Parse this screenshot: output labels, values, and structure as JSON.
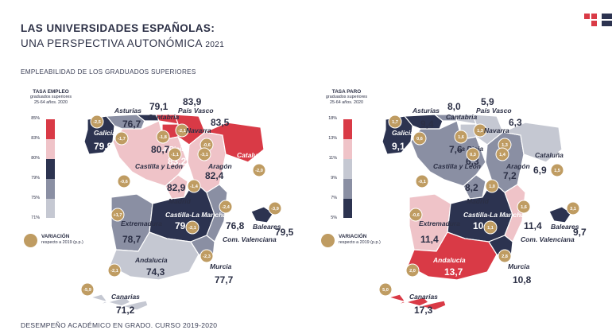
{
  "header": {
    "title_line1": "LAS UNIVERSIDADES ESPAÑOLAS:",
    "title_line2": "UNA PERSPECTIVA AUTONÓMICA",
    "year": "2021"
  },
  "section_title": "EMPLEABILIDAD DE LOS GRADUADOS SUPERIORES",
  "footer": "DESEMPEÑO ACADÉMICO EN GRADO. CURSO 2019-2020",
  "colors": {
    "dark": "#2c3350",
    "mid": "#8a8fa3",
    "light": "#c5c8d2",
    "pink": "#efc3c8",
    "red": "#d93a46",
    "gold": "#bf9c62"
  },
  "maps": [
    {
      "legend_title": "TASA EMPLEO",
      "legend_sub1": "graduados superiores",
      "legend_sub2": "25-64 años. 2020",
      "ticks": [
        "85%",
        "83%",
        "80%",
        "79%",
        "75%",
        "71%"
      ],
      "variation_label": "VARIACIÓN",
      "variation_sub": "respecto a 2019 (p.p.)",
      "regions": [
        {
          "name": "Galicia",
          "value": "79,9",
          "variation": "-2,5"
        },
        {
          "name": "Asturias",
          "value": "76,7",
          "variation": "-1,7"
        },
        {
          "name": "Cantabria",
          "value": "79,1",
          "variation": "-1,8"
        },
        {
          "name": "País Vasco",
          "value": "83,9",
          "variation": "-2,1"
        },
        {
          "name": "Navarra",
          "value": "83,5",
          "variation": "-0,6"
        },
        {
          "name": "La Rioja",
          "value": "83,2",
          "variation": "-1,1"
        },
        {
          "name": "Aragón",
          "value": "82,4",
          "variation": "-3,1"
        },
        {
          "name": "Cataluña",
          "value": "84,4",
          "variation": "-2,0"
        },
        {
          "name": "Castilla y León",
          "value": "80,7",
          "variation": "-0,6"
        },
        {
          "name": "Madrid",
          "value": "82,9",
          "variation": "-1,4"
        },
        {
          "name": "Extremadura",
          "value": "78,7",
          "variation": "+1,7"
        },
        {
          "name": "Castilla-La Mancha",
          "value": "79,2",
          "variation": "-2,1"
        },
        {
          "name": "Com. Valenciana",
          "value": "76,8",
          "variation": "-2,4"
        },
        {
          "name": "Baleares",
          "value": "79,5",
          "variation": "-3,9"
        },
        {
          "name": "Andalucía",
          "value": "74,3",
          "variation": "-2,1"
        },
        {
          "name": "Murcia",
          "value": "77,7",
          "variation": "-2,3"
        },
        {
          "name": "Canarias",
          "value": "71,2",
          "variation": "-5,9"
        }
      ]
    },
    {
      "legend_title": "TASA PARO",
      "legend_sub1": "graduados superiores",
      "legend_sub2": "25-64 años. 2020",
      "ticks": [
        "18%",
        "13%",
        "11%",
        "9%",
        "7%",
        "5%"
      ],
      "variation_label": "VARIACIÓN",
      "variation_sub": "respecto a 2019 (p.p.)",
      "regions": [
        {
          "name": "Galicia",
          "value": "9,1",
          "variation": "1,7"
        },
        {
          "name": "Asturias",
          "value": "9,4",
          "variation": "0,6"
        },
        {
          "name": "Cantabria",
          "value": "8,0",
          "variation": "1,6"
        },
        {
          "name": "País Vasco",
          "value": "5,9",
          "variation": "1,3"
        },
        {
          "name": "Navarra",
          "value": "6,3",
          "variation": "1,3"
        },
        {
          "name": "La Rioja",
          "value": "6,3",
          "variation": "0,3"
        },
        {
          "name": "Aragón",
          "value": "7,2",
          "variation": "1,4"
        },
        {
          "name": "Cataluña",
          "value": "6,9",
          "variation": "1,5"
        },
        {
          "name": "Castilla y León",
          "value": "7,6",
          "variation": "-0,1"
        },
        {
          "name": "Madrid",
          "value": "8,2",
          "variation": "1,0"
        },
        {
          "name": "Extremadura",
          "value": "11,4",
          "variation": "-0,6"
        },
        {
          "name": "Castilla-La Mancha",
          "value": "10,5",
          "variation": "1,1"
        },
        {
          "name": "Com. Valenciana",
          "value": "11,4",
          "variation": "1,6"
        },
        {
          "name": "Baleares",
          "value": "9,7",
          "variation": "3,1"
        },
        {
          "name": "Andalucía",
          "value": "13,7",
          "variation": "2,0"
        },
        {
          "name": "Murcia",
          "value": "10,8",
          "variation": "2,8"
        },
        {
          "name": "Canarias",
          "value": "17,3",
          "variation": "5,0"
        }
      ]
    }
  ]
}
